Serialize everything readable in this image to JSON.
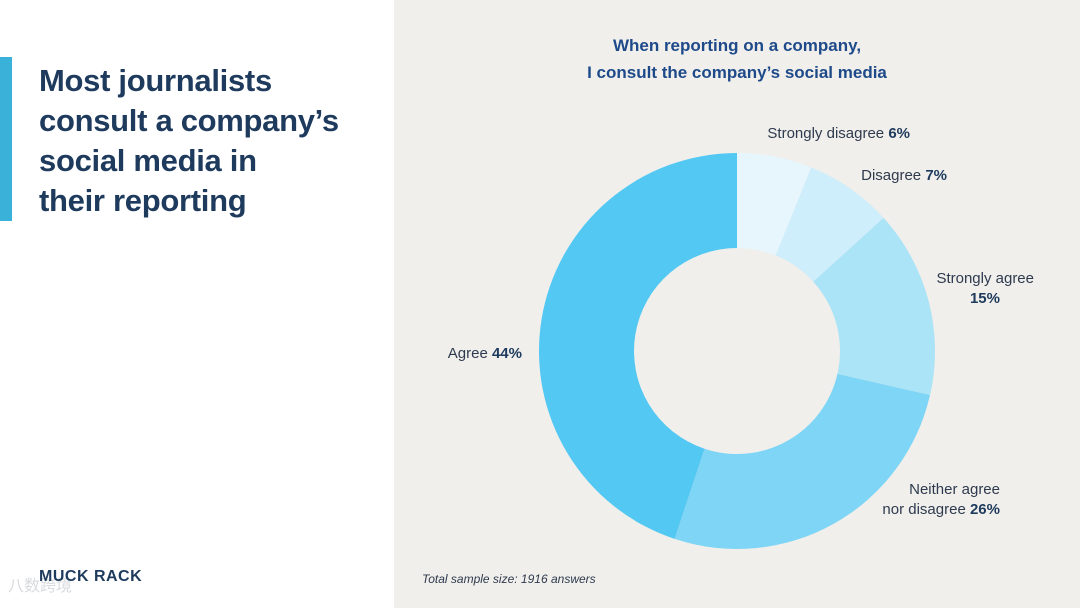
{
  "headline": {
    "line1": "Most journalists",
    "line2": "consult a company’s",
    "line3": "social media in",
    "line4": "their reporting"
  },
  "brand": "MUCK RACK",
  "watermark": "八数跨境",
  "colors": {
    "left_bg": "#ffffff",
    "right_bg": "#f0efec",
    "accent": "#3ab1d9",
    "headline": "#1e3a5c",
    "title": "#1e4a8a"
  },
  "chart_data": {
    "type": "pie",
    "variant": "donut",
    "title_line1": "When reporting on a company,",
    "title_line2": "I consult the company’s social media",
    "slices": [
      {
        "label": "Strongly disagree",
        "label_line2": "",
        "value": 6,
        "value_text": "6%",
        "color": "#e6f6fc"
      },
      {
        "label": "Disagree",
        "label_line2": "",
        "value": 7,
        "value_text": "7%",
        "color": "#cdeefa"
      },
      {
        "label": "Strongly agree",
        "label_line2": "",
        "value": 15,
        "value_text": "15%",
        "color": "#abe3f7"
      },
      {
        "label": "Neither agree",
        "label_line2": "nor disagree",
        "value": 26,
        "value_text": "26%",
        "color": "#7fd5f5"
      },
      {
        "label": "Agree",
        "label_line2": "",
        "value": 44,
        "value_text": "44%",
        "color": "#52c8f2"
      }
    ],
    "footnote": "Total sample size: 1916 answers"
  }
}
